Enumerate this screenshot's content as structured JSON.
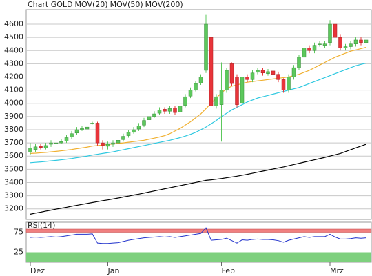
{
  "chart_data": [
    {
      "type": "candlestick",
      "title": "Chart GOLD",
      "title_color": "#d9772b",
      "categories": [
        "Dez",
        null,
        null,
        null,
        null,
        null,
        null,
        null,
        null,
        null,
        null,
        null,
        null,
        null,
        null,
        "Jan",
        null,
        null,
        null,
        null,
        null,
        null,
        null,
        null,
        null,
        null,
        null,
        null,
        null,
        null,
        null,
        null,
        null,
        null,
        null,
        null,
        null,
        "Feb",
        null,
        null,
        null,
        null,
        null,
        null,
        null,
        null,
        null,
        null,
        null,
        null,
        null,
        null,
        null,
        null,
        null,
        null,
        null,
        null,
        "Mrz",
        null,
        null,
        null,
        null,
        null,
        null,
        null
      ],
      "open": [
        3630,
        3650,
        3675,
        3660,
        3690,
        3700,
        3700,
        3715,
        3745,
        3775,
        3800,
        3805,
        3850,
        3850,
        3700,
        3675,
        3690,
        3700,
        3725,
        3755,
        3780,
        3805,
        3835,
        3875,
        3900,
        3925,
        3955,
        3940,
        3965,
        3935,
        3985,
        4055,
        4100,
        4155,
        4250,
        4500,
        3980,
        3990,
        4100,
        4300,
        4200,
        4000,
        4200,
        4180,
        4235,
        4250,
        4225,
        4245,
        4220,
        4180,
        4100,
        4200,
        4270,
        4350,
        4420,
        4400,
        4450,
        4440,
        4460,
        4600,
        4500,
        4420,
        4430,
        4450,
        4480,
        4460
      ],
      "high": [
        3700,
        3690,
        3690,
        3700,
        3720,
        3720,
        3730,
        3760,
        3790,
        3820,
        3830,
        3840,
        3860,
        3860,
        3720,
        3710,
        3720,
        3740,
        3770,
        3800,
        3820,
        3850,
        3890,
        3920,
        3940,
        3970,
        3970,
        3980,
        3980,
        4000,
        4070,
        4120,
        4170,
        4220,
        4670,
        4520,
        4070,
        4310,
        4270,
        4310,
        4220,
        4220,
        4220,
        4250,
        4270,
        4270,
        4260,
        4260,
        4240,
        4190,
        4220,
        4290,
        4370,
        4440,
        4440,
        4460,
        4470,
        4470,
        4630,
        4610,
        4520,
        4450,
        4470,
        4500,
        4500,
        4500
      ],
      "low": [
        3610,
        3630,
        3650,
        3650,
        3670,
        3680,
        3690,
        3700,
        3730,
        3760,
        3790,
        3790,
        3840,
        3680,
        3650,
        3650,
        3670,
        3690,
        3710,
        3740,
        3770,
        3790,
        3820,
        3860,
        3890,
        3910,
        3920,
        3920,
        3910,
        3920,
        3970,
        4040,
        4090,
        4140,
        4230,
        3960,
        3960,
        3710,
        4080,
        4130,
        3970,
        3980,
        4160,
        4160,
        4220,
        4210,
        4210,
        4200,
        4160,
        4080,
        4080,
        4180,
        4250,
        4330,
        4380,
        4380,
        4430,
        4420,
        4440,
        4480,
        4400,
        4400,
        4410,
        4430,
        4440,
        4440
      ],
      "close": [
        3660,
        3670,
        3665,
        3680,
        3700,
        3700,
        3710,
        3740,
        3770,
        3800,
        3810,
        3820,
        3850,
        3700,
        3680,
        3690,
        3700,
        3720,
        3750,
        3780,
        3800,
        3830,
        3870,
        3900,
        3920,
        3950,
        3940,
        3960,
        3930,
        3980,
        4050,
        4100,
        4150,
        4200,
        4600,
        3980,
        4050,
        4100,
        4250,
        4150,
        3990,
        4200,
        4180,
        4230,
        4250,
        4230,
        4240,
        4220,
        4180,
        4100,
        4200,
        4270,
        4350,
        4420,
        4400,
        4440,
        4450,
        4450,
        4600,
        4500,
        4420,
        4430,
        4450,
        4480,
        4460,
        4480
      ],
      "up_color": "#5cc85c",
      "down_color": "#e8343a",
      "series": [
        {
          "name": "MOV(20)",
          "color": "#f0b030",
          "values": [
            3620,
            3622,
            3625,
            3628,
            3632,
            3636,
            3640,
            3645,
            3650,
            3656,
            3662,
            3668,
            3676,
            3680,
            3684,
            3688,
            3692,
            3696,
            3700,
            3705,
            3710,
            3715,
            3720,
            3728,
            3736,
            3745,
            3755,
            3770,
            3790,
            3810,
            3835,
            3860,
            3890,
            3920,
            3960,
            4000,
            4040,
            4080,
            4110,
            4130,
            4140,
            4150,
            4160,
            4165,
            4170,
            4175,
            4180,
            4185,
            4190,
            4195,
            4200,
            4210,
            4220,
            4235,
            4250,
            4270,
            4290,
            4310,
            4330,
            4350,
            4365,
            4380,
            4395,
            4405,
            4415,
            4425
          ]
        },
        {
          "name": "MOV(50)",
          "color": "#2ec8e0",
          "values": [
            3550,
            3553,
            3556,
            3560,
            3564,
            3568,
            3572,
            3577,
            3582,
            3588,
            3594,
            3600,
            3608,
            3614,
            3620,
            3626,
            3632,
            3640,
            3648,
            3656,
            3664,
            3672,
            3680,
            3688,
            3696,
            3704,
            3712,
            3720,
            3730,
            3740,
            3752,
            3765,
            3780,
            3800,
            3820,
            3845,
            3870,
            3900,
            3925,
            3950,
            3970,
            3990,
            4010,
            4025,
            4040,
            4050,
            4060,
            4070,
            4080,
            4090,
            4100,
            4110,
            4120,
            4135,
            4150,
            4165,
            4180,
            4195,
            4210,
            4225,
            4240,
            4255,
            4270,
            4285,
            4295,
            4305
          ]
        },
        {
          "name": "MOV(200)",
          "color": "#000000",
          "values": [
            3160,
            3168,
            3175,
            3183,
            3190,
            3198,
            3205,
            3212,
            3220,
            3227,
            3234,
            3241,
            3248,
            3255,
            3262,
            3268,
            3275,
            3282,
            3290,
            3297,
            3305,
            3312,
            3320,
            3328,
            3336,
            3344,
            3352,
            3360,
            3368,
            3376,
            3384,
            3392,
            3400,
            3408,
            3416,
            3420,
            3425,
            3430,
            3436,
            3442,
            3448,
            3455,
            3462,
            3470,
            3478,
            3486,
            3494,
            3502,
            3510,
            3518,
            3527,
            3536,
            3545,
            3554,
            3563,
            3572,
            3581,
            3590,
            3600,
            3610,
            3620,
            3634,
            3648,
            3662,
            3676,
            3690
          ]
        }
      ],
      "ylim": [
        3120,
        4710
      ],
      "yticks": [
        3200,
        3300,
        3400,
        3500,
        3600,
        3700,
        3800,
        3900,
        4000,
        4100,
        4200,
        4300,
        4400,
        4500,
        4600
      ],
      "grid": true
    },
    {
      "type": "line",
      "series": [
        {
          "name": "RSI(14)",
          "color": "#2233cc",
          "values": [
            62,
            63,
            62,
            63,
            64,
            63,
            64,
            66,
            68,
            70,
            70,
            70,
            71,
            48,
            47,
            47,
            48,
            49,
            52,
            55,
            57,
            59,
            61,
            62,
            63,
            64,
            63,
            64,
            62,
            64,
            66,
            68,
            70,
            72,
            86,
            55,
            56,
            57,
            60,
            54,
            48,
            56,
            55,
            57,
            58,
            57,
            57,
            56,
            54,
            50,
            55,
            58,
            61,
            64,
            62,
            64,
            64,
            64,
            70,
            63,
            58,
            58,
            59,
            61,
            60,
            61
          ]
        }
      ],
      "ylim": [
        0,
        100
      ],
      "yticks": [
        75,
        25
      ],
      "band_colors": [
        "#f08080",
        "#7ed07e"
      ]
    }
  ]
}
